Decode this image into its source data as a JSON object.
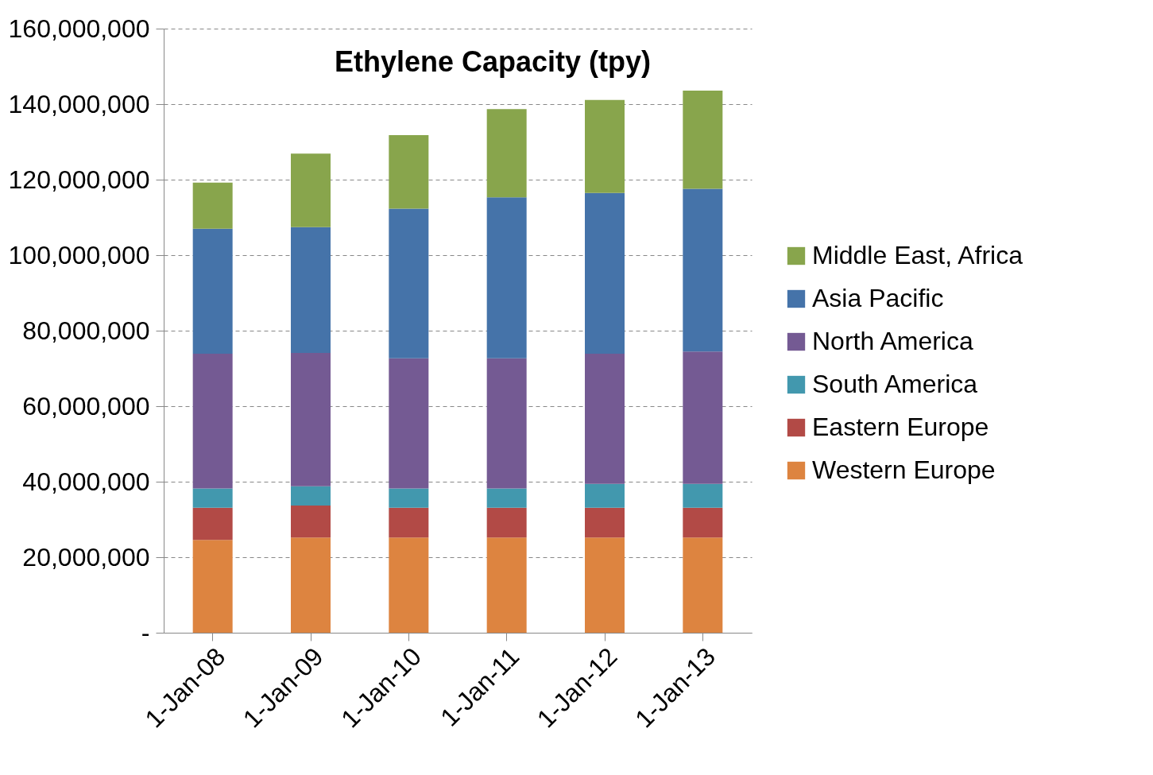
{
  "chart_data": {
    "type": "bar",
    "title": "Ethylene Capacity (tpy)",
    "stacked": true,
    "categories": [
      "1-Jan-08",
      "1-Jan-09",
      "1-Jan-10",
      "1-Jan-11",
      "1-Jan-12",
      "1-Jan-13"
    ],
    "series": [
      {
        "name": "Western Europe",
        "color": "#dd8440",
        "values": [
          24600000,
          25200000,
          25200000,
          25200000,
          25200000,
          25200000
        ]
      },
      {
        "name": "Eastern Europe",
        "color": "#b24a46",
        "values": [
          8500000,
          8500000,
          7900000,
          7900000,
          7900000,
          7900000
        ]
      },
      {
        "name": "South America",
        "color": "#4298ae",
        "values": [
          5100000,
          5100000,
          5100000,
          5100000,
          6300000,
          6300000
        ]
      },
      {
        "name": "North America",
        "color": "#745a93",
        "values": [
          35700000,
          35300000,
          34500000,
          34500000,
          34500000,
          35100000
        ]
      },
      {
        "name": "Asia Pacific",
        "color": "#4573a9",
        "values": [
          33100000,
          33300000,
          39600000,
          42600000,
          42600000,
          43100000
        ]
      },
      {
        "name": "Middle East, Africa",
        "color": "#88a54c",
        "values": [
          12200000,
          19500000,
          19500000,
          23400000,
          24600000,
          26000000
        ]
      }
    ],
    "ylim": [
      0,
      160000000
    ],
    "yticks": [
      {
        "value": 0,
        "label": "-"
      },
      {
        "value": 20000000,
        "label": "20,000,000"
      },
      {
        "value": 40000000,
        "label": "40,000,000"
      },
      {
        "value": 60000000,
        "label": "60,000,000"
      },
      {
        "value": 80000000,
        "label": "80,000,000"
      },
      {
        "value": 100000000,
        "label": "100,000,000"
      },
      {
        "value": 120000000,
        "label": "120,000,000"
      },
      {
        "value": 140000000,
        "label": "140,000,000"
      },
      {
        "value": 160000000,
        "label": "160,000,000"
      }
    ],
    "grid": "y",
    "legend": "right"
  }
}
